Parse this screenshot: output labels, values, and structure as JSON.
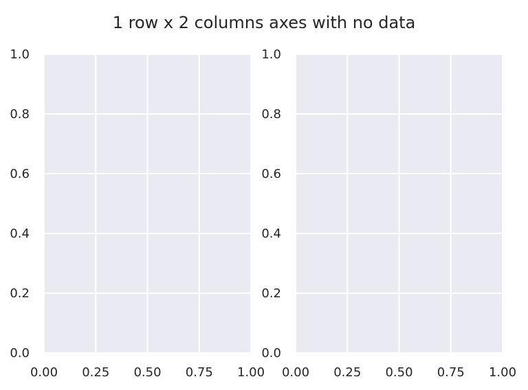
{
  "figure_title": "1 row x 2 columns axes with no data",
  "colors": {
    "axes_background": "#EAEAF2",
    "grid": "#FFFFFF",
    "text": "#262626",
    "figure_background": "#FFFFFF"
  },
  "chart_data": [
    {
      "type": "scatter",
      "title": "",
      "xlabel": "",
      "ylabel": "",
      "series": [],
      "xlim": [
        0.0,
        1.0
      ],
      "ylim": [
        0.0,
        1.0
      ],
      "x_ticks": [
        0.0,
        0.25,
        0.5,
        0.75,
        1.0
      ],
      "x_tick_labels": [
        "0.00",
        "0.25",
        "0.50",
        "0.75",
        "1.00"
      ],
      "y_ticks": [
        0.0,
        0.2,
        0.4,
        0.6,
        0.8,
        1.0
      ],
      "y_tick_labels": [
        "0.0",
        "0.2",
        "0.4",
        "0.6",
        "0.8",
        "1.0"
      ],
      "grid": true,
      "legend": "none"
    },
    {
      "type": "scatter",
      "title": "",
      "xlabel": "",
      "ylabel": "",
      "series": [],
      "xlim": [
        0.0,
        1.0
      ],
      "ylim": [
        0.0,
        1.0
      ],
      "x_ticks": [
        0.0,
        0.25,
        0.5,
        0.75,
        1.0
      ],
      "x_tick_labels": [
        "0.00",
        "0.25",
        "0.50",
        "0.75",
        "1.00"
      ],
      "y_ticks": [
        0.0,
        0.2,
        0.4,
        0.6,
        0.8,
        1.0
      ],
      "y_tick_labels": [
        "0.0",
        "0.2",
        "0.4",
        "0.6",
        "0.8",
        "1.0"
      ],
      "grid": true,
      "legend": "none"
    }
  ]
}
